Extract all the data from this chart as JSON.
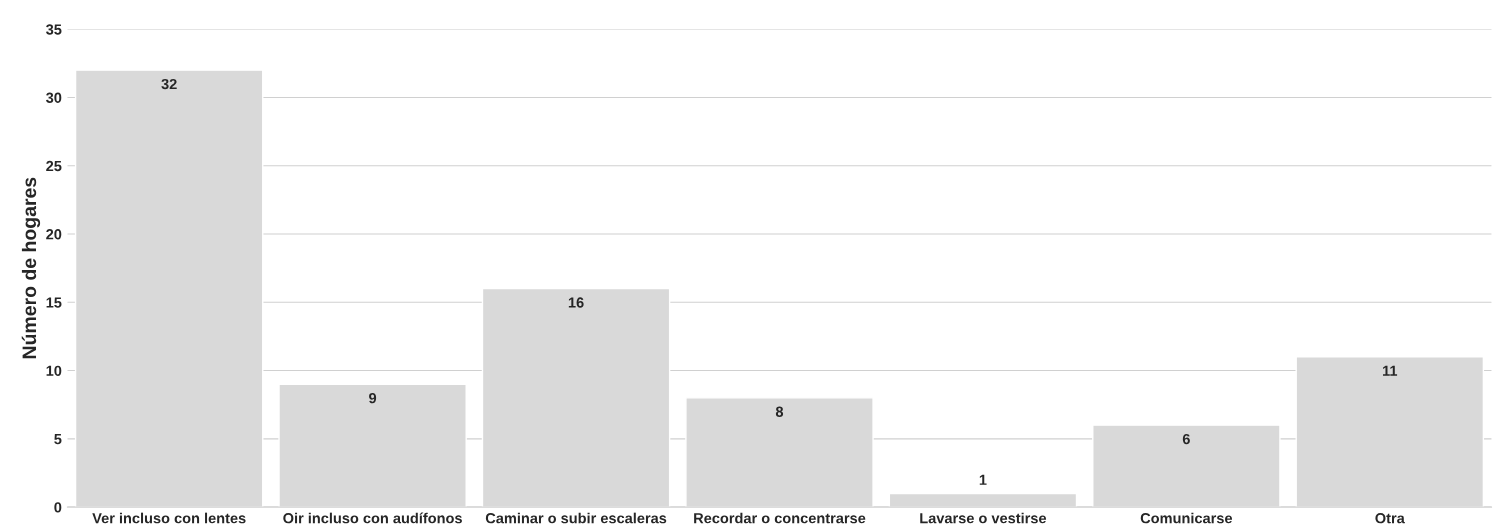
{
  "chart_data": {
    "type": "bar",
    "ylabel": "Número de hogares",
    "categories": [
      "Ver incluso con lentes",
      "Oir incluso con audífonos",
      "Caminar o subir escaleras",
      "Recordar o concentrarse",
      "Lavarse o vestirse",
      "Comunicarse",
      "Otra"
    ],
    "values": [
      32,
      9,
      16,
      8,
      1,
      6,
      11
    ],
    "color": "#d9d9d9",
    "ylim": [
      0,
      35
    ],
    "yticks": [
      0,
      5,
      10,
      15,
      20,
      25,
      30,
      35
    ],
    "grid": "y",
    "data_labels": true
  }
}
